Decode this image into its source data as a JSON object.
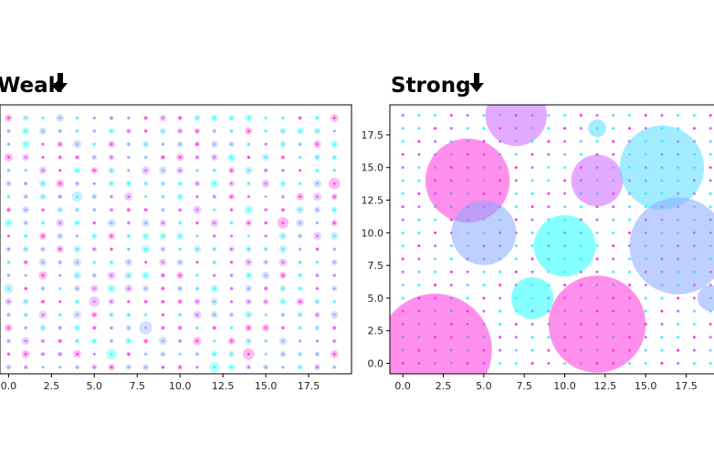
{
  "chart_data": [
    {
      "type": "scatter",
      "title": "Weak",
      "title_arrow": "down-arrow-icon",
      "xlabel": "",
      "ylabel": "",
      "xlim": [
        -0.5,
        20
      ],
      "ylim": [
        -0.5,
        20
      ],
      "xticks": [
        0,
        2.5,
        5,
        7.5,
        10,
        12.5,
        15,
        17.5
      ],
      "xtick_labels": [
        "0.0",
        "2.5",
        "5.0",
        "7.5",
        "10.0",
        "12.5",
        "15.0",
        "17.5"
      ],
      "yticks": [],
      "grid": false,
      "series_description": "20x20 grid of dots (x,y = 0..19) with small random sizes; colors range magenta to cyan to periwinkle",
      "colors": [
        "#ff33dd",
        "#cc66ff",
        "#88aaff",
        "#55ddff",
        "#22ffff"
      ],
      "highlighted_points": [
        {
          "x": 8,
          "y": 3,
          "size": 3.0
        },
        {
          "x": 5,
          "y": 5,
          "size": 2.4
        },
        {
          "x": 6,
          "y": 1,
          "size": 2.4
        },
        {
          "x": 14,
          "y": 1,
          "size": 2.6
        },
        {
          "x": 16,
          "y": 11,
          "size": 2.6
        },
        {
          "x": 19,
          "y": 14,
          "size": 2.6
        },
        {
          "x": 4,
          "y": 13,
          "size": 2.4
        },
        {
          "x": 0,
          "y": 6,
          "size": 2.2
        },
        {
          "x": 12,
          "y": 0,
          "size": 2.4
        }
      ]
    },
    {
      "type": "scatter",
      "title": "Strong",
      "title_arrow": "down-arrow-icon",
      "xlabel": "",
      "ylabel": "",
      "xlim": [
        -0.8,
        19.5
      ],
      "ylim": [
        -0.8,
        19.8
      ],
      "xticks": [
        0,
        2.5,
        5,
        7.5,
        10,
        12.5,
        15,
        17.5
      ],
      "xtick_labels": [
        "0.0",
        "2.5",
        "5.0",
        "7.5",
        "10.0",
        "12.5",
        "15.0",
        "17.5"
      ],
      "yticks": [
        0,
        2.5,
        5,
        7.5,
        10,
        12.5,
        15,
        17.5
      ],
      "ytick_labels": [
        "0.0",
        "2.5",
        "5.0",
        "7.5",
        "10.0",
        "12.5",
        "15.0",
        "17.5"
      ],
      "grid": false,
      "series_description": "20x20 grid of small dots (x,y = 0..19) plus a few very large highlighted bubbles",
      "big_bubbles": [
        {
          "x": 2,
          "y": 1,
          "r": 3.5,
          "color": "#ff33dd"
        },
        {
          "x": 4,
          "y": 14,
          "r": 2.6,
          "color": "#ff33dd"
        },
        {
          "x": 5,
          "y": 10,
          "r": 2.0,
          "color": "#88aaff"
        },
        {
          "x": 7,
          "y": 19,
          "r": 1.9,
          "color": "#cc66ff"
        },
        {
          "x": 8,
          "y": 5,
          "r": 1.3,
          "color": "#22ffff"
        },
        {
          "x": 10,
          "y": 9,
          "r": 1.9,
          "color": "#22ffff"
        },
        {
          "x": 12,
          "y": 3,
          "r": 3.0,
          "color": "#ff33dd"
        },
        {
          "x": 12,
          "y": 14,
          "r": 1.6,
          "color": "#cc66ff"
        },
        {
          "x": 12,
          "y": 18,
          "r": 0.55,
          "color": "#55ddff"
        },
        {
          "x": 16,
          "y": 15,
          "r": 2.6,
          "color": "#55ddff"
        },
        {
          "x": 17,
          "y": 9,
          "r": 3.0,
          "color": "#88aaff"
        },
        {
          "x": 19,
          "y": 5,
          "r": 0.8,
          "color": "#88aaff"
        }
      ]
    }
  ]
}
